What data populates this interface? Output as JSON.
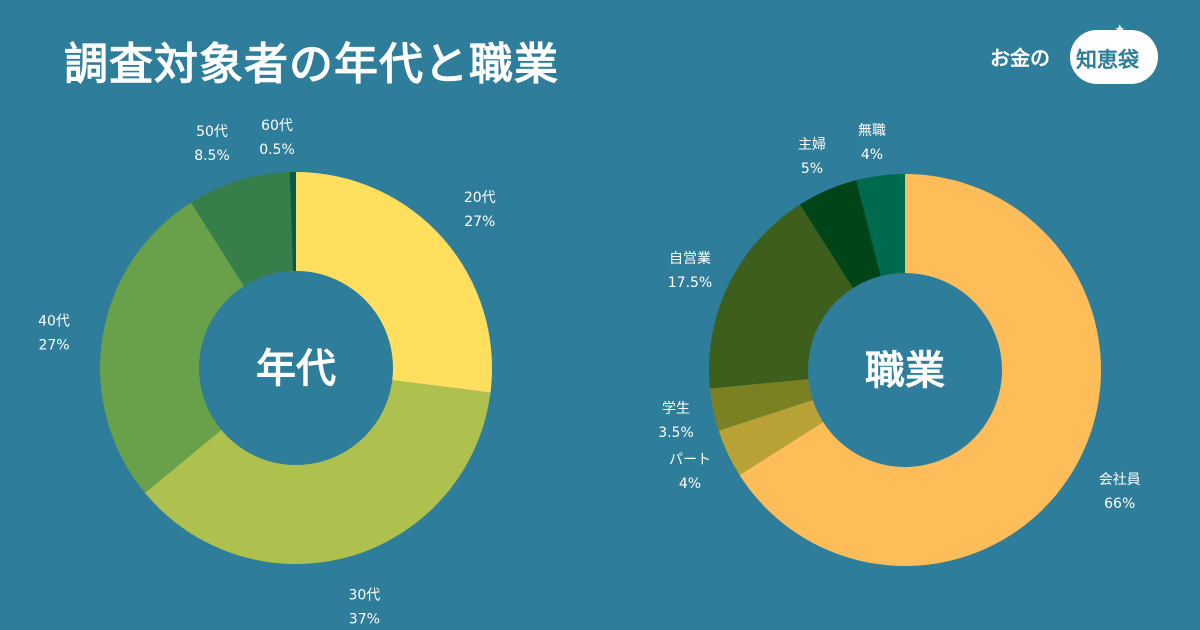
{
  "title": "調査対象者の年代と職業",
  "logo": {
    "text_left": "お金の",
    "text_right": "知恵袋"
  },
  "colors": {
    "background": "#2e7d9a"
  },
  "chart_data": [
    {
      "type": "donut",
      "center_label": "年代",
      "slices": [
        {
          "label": "20代",
          "value": 27,
          "display": "27%",
          "color": "#ffdf5d"
        },
        {
          "label": "30代",
          "value": 37,
          "display": "37%",
          "color": "#aec14e"
        },
        {
          "label": "40代",
          "value": 27,
          "display": "27%",
          "color": "#69a04a"
        },
        {
          "label": "50代",
          "value": 8.5,
          "display": "8.5%",
          "color": "#367f4a"
        },
        {
          "label": "60代",
          "value": 0.5,
          "display": "0.5%",
          "color": "#0e5a3e"
        }
      ]
    },
    {
      "type": "donut",
      "center_label": "職業",
      "slices": [
        {
          "label": "会社員",
          "value": 66,
          "display": "66%",
          "color": "#ffbd59"
        },
        {
          "label": "パート",
          "value": 4,
          "display": "4%",
          "color": "#b8a236"
        },
        {
          "label": "学生",
          "value": 3.5,
          "display": "3.5%",
          "color": "#7b8123"
        },
        {
          "label": "自営業",
          "value": 17.5,
          "display": "17.5%",
          "color": "#3e5e1c"
        },
        {
          "label": "主婦",
          "value": 5,
          "display": "5%",
          "color": "#004417"
        },
        {
          "label": "無職",
          "value": 4,
          "display": "4%",
          "color": "#006a4f"
        }
      ]
    }
  ]
}
